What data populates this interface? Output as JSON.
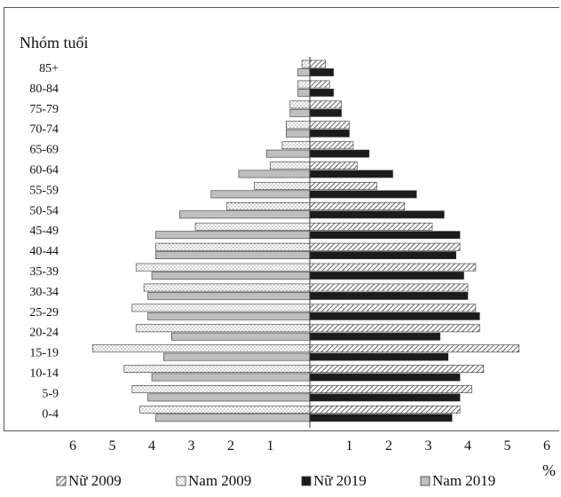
{
  "chart_data": {
    "type": "bar",
    "orientation": "horizontal",
    "subtype": "population-pyramid",
    "y_axis_title": "Nhóm tuổi",
    "x_unit": "%",
    "categories": [
      "85+",
      "80-84",
      "75-79",
      "70-74",
      "65-69",
      "60-64",
      "55-59",
      "50-54",
      "45-49",
      "40-44",
      "35-39",
      "30-34",
      "25-29",
      "20-24",
      "15-19",
      "10-14",
      "5-9",
      "0-4"
    ],
    "x_ticks": [
      "6",
      "5",
      "4",
      "3",
      "2",
      "1",
      "",
      "1",
      "2",
      "3",
      "4",
      "5",
      "6"
    ],
    "xlim": [
      -6,
      6
    ],
    "series": [
      {
        "name": "Nam 2009",
        "side": "left",
        "pattern": "dotted",
        "values": [
          0.2,
          0.3,
          0.5,
          0.6,
          0.7,
          1.0,
          1.4,
          2.1,
          2.9,
          3.9,
          4.4,
          4.2,
          4.5,
          4.4,
          5.5,
          4.7,
          4.5,
          4.3
        ]
      },
      {
        "name": "Nam 2019",
        "side": "left",
        "pattern": "gray",
        "values": [
          0.3,
          0.3,
          0.5,
          0.6,
          1.1,
          1.8,
          2.5,
          3.3,
          3.9,
          3.9,
          4.0,
          4.1,
          4.1,
          3.5,
          3.7,
          4.0,
          4.1,
          3.9
        ]
      },
      {
        "name": "Nữ 2009",
        "side": "right",
        "pattern": "hatched",
        "values": [
          0.4,
          0.5,
          0.8,
          1.0,
          1.1,
          1.2,
          1.7,
          2.4,
          3.1,
          3.8,
          4.2,
          4.0,
          4.2,
          4.3,
          5.3,
          4.4,
          4.1,
          3.8
        ]
      },
      {
        "name": "Nữ 2019",
        "side": "right",
        "pattern": "black",
        "values": [
          0.6,
          0.6,
          0.8,
          1.0,
          1.5,
          2.1,
          2.7,
          3.4,
          3.8,
          3.7,
          3.9,
          4.0,
          4.3,
          3.3,
          3.5,
          3.8,
          3.8,
          3.6
        ]
      }
    ],
    "legend": {
      "position": "bottom",
      "order": [
        "Nữ 2009",
        "Nam 2009",
        "Nữ 2019",
        "Nam 2019"
      ]
    }
  }
}
